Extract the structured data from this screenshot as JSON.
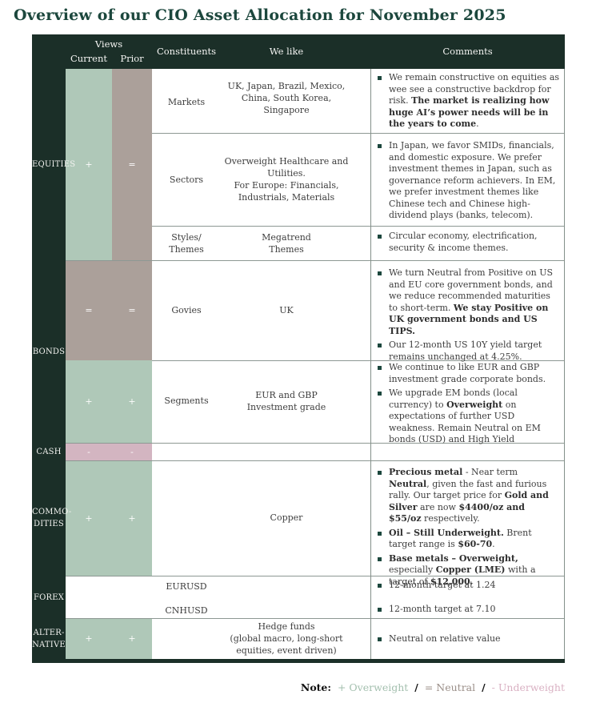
{
  "title": "Overview of our CIO Asset Allocation for November 2025",
  "header": {
    "views": "Views",
    "current": "Current",
    "prior": "Prior",
    "constituents": "Constituents",
    "we_like": "We like",
    "comments": "Comments"
  },
  "colors": {
    "header_bg": "#1b2f28",
    "title_text": "#1c473d",
    "overweight_bg": "#afc8b8",
    "neutral_bg": "#aba09a",
    "underweight_bg": "#d3b5c1",
    "overweight_text": "#a3bfae",
    "neutral_text": "#9b8f89",
    "underweight_text": "#d9b1c3"
  },
  "sections": {
    "equities": {
      "label": "EQUITIES",
      "current": "+",
      "prior": "=",
      "markets": {
        "constituent": "Markets",
        "we_like": "UK, Japan, Brazil, Mexico,\nChina, South Korea,\nSingapore",
        "comments": [
          "We remain constructive on equities as wee see a constructive backdrop for risk. **The market is realizing how huge AI’s power needs will be in the years to come**."
        ]
      },
      "sectors": {
        "constituent": "Sectors",
        "we_like": "Overweight Healthcare and\nUtilities.\nFor Europe: Financials,\nIndustrials, Materials",
        "comments": [
          "In Japan, we favor SMIDs, financials, and domestic exposure. We prefer investment themes in Japan, such as governance reform achievers. In EM, we prefer investment themes like Chinese tech and Chinese high-dividend plays (banks, telecom)."
        ]
      },
      "styles": {
        "constituent": "Styles/\nThemes",
        "we_like": "Megatrend\nThemes",
        "comments": [
          "Circular economy, electrification, security & income themes."
        ]
      }
    },
    "bonds": {
      "label": "BONDS",
      "govies": {
        "current": "=",
        "prior": "=",
        "constituent": "Govies",
        "we_like": "UK",
        "comments": [
          "We turn Neutral from Positive on US and EU core government bonds, and we reduce recommended maturities to short-term. **We stay Positive on UK government bonds and US TIPS.**",
          "Our 12-month US 10Y yield target remains unchanged at 4.25%."
        ]
      },
      "segments": {
        "current": "+",
        "prior": "+",
        "constituent": "Segments",
        "we_like": "EUR and GBP\nInvestment grade",
        "comments": [
          "We continue to like EUR and GBP investment grade corporate bonds.",
          "We upgrade EM bonds (local currency) to **Overweight** on expectations of further USD weakness. Remain Neutral on EM bonds (USD) and High Yield"
        ]
      }
    },
    "cash": {
      "label": "CASH",
      "current": "-",
      "prior": "-"
    },
    "commodities": {
      "label": "COMMO-\nDITIES",
      "current": "+",
      "prior": "+",
      "we_like": "Copper",
      "comments": [
        "**Precious metal** - Near term **Neutral**, given the fast and furious rally. Our target price for **Gold and Silver** are now **$4400/oz and $55/oz** respectively.",
        "**Oil – Still Underweight.** Brent target range is **$60-70**.",
        "**Base metals – Overweight,** especially **Copper (LME)** with a target of **$12,000**."
      ]
    },
    "forex": {
      "label": "FOREX",
      "row1": {
        "constituent": "EURUSD",
        "comments": [
          "12-month target at 1.24"
        ]
      },
      "row2": {
        "constituent": "CNHUSD",
        "comments": [
          "12-month target at 7.10"
        ]
      }
    },
    "alternative": {
      "label": "ALTER-\nNATIVE",
      "current": "+",
      "prior": "+",
      "we_like": "Hedge funds\n(global macro, long-short\nequities, event driven)",
      "comments": [
        "Neutral on relative value"
      ]
    }
  },
  "note": {
    "label": "Note:",
    "overweight": "+ Overweight",
    "slash": "/",
    "neutral": "= Neutral",
    "underweight": "- Underweight"
  }
}
